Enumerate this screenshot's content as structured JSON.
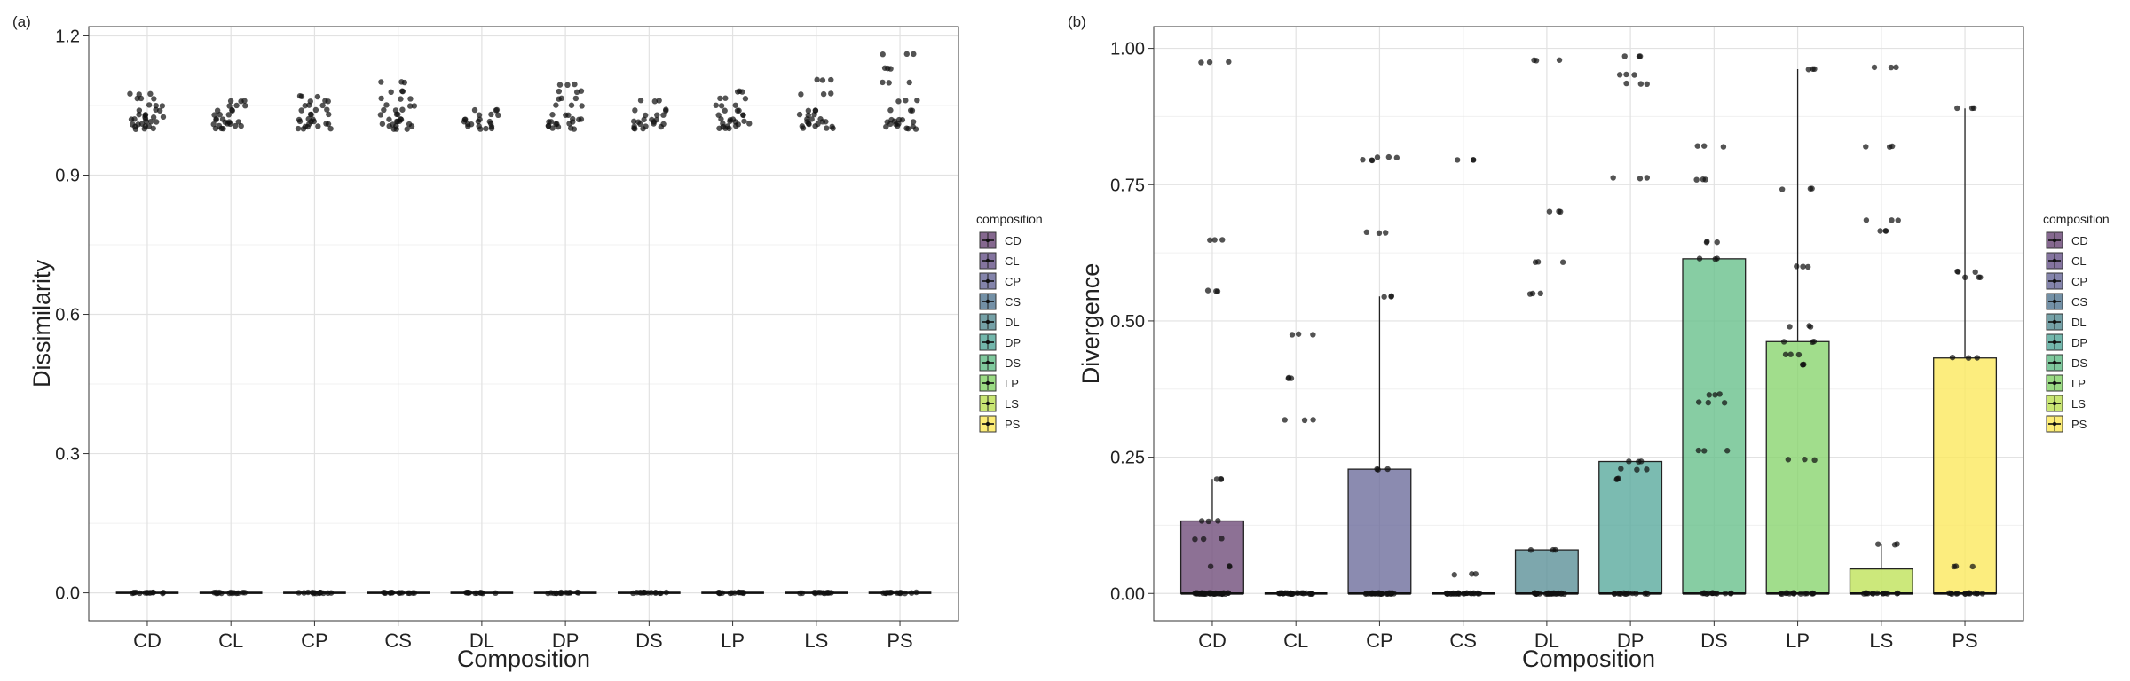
{
  "chart_data": [
    {
      "panel_label": "(a)",
      "type": "box",
      "xlabel": "Composition",
      "ylabel": "Dissimilarity",
      "categories": [
        "CD",
        "CL",
        "CP",
        "CS",
        "DL",
        "DP",
        "DS",
        "LP",
        "LS",
        "PS"
      ],
      "ylim": [
        -0.06,
        1.22
      ],
      "yticks": [
        0.0,
        0.3,
        0.6,
        0.9,
        1.2
      ],
      "ytick_labels": [
        "0.0",
        "0.3",
        "0.6",
        "0.9",
        "1.2"
      ],
      "grid": true,
      "legend": {
        "title": "composition",
        "position": "right"
      },
      "boxes": [
        {
          "q1": 0,
          "median": 0,
          "q3": 0,
          "whisker_high": 0
        },
        {
          "q1": 0,
          "median": 0,
          "q3": 0,
          "whisker_high": 0
        },
        {
          "q1": 0,
          "median": 0,
          "q3": 0,
          "whisker_high": 0
        },
        {
          "q1": 0,
          "median": 0,
          "q3": 0,
          "whisker_high": 0
        },
        {
          "q1": 0,
          "median": 0,
          "q3": 0,
          "whisker_high": 0
        },
        {
          "q1": 0,
          "median": 0,
          "q3": 0,
          "whisker_high": 0
        },
        {
          "q1": 0,
          "median": 0,
          "q3": 0,
          "whisker_high": 0
        },
        {
          "q1": 0,
          "median": 0,
          "q3": 0,
          "whisker_high": 0
        },
        {
          "q1": 0,
          "median": 0,
          "q3": 0,
          "whisker_high": 0
        },
        {
          "q1": 0,
          "median": 0,
          "q3": 0,
          "whisker_high": 0
        }
      ],
      "points": [
        [
          0,
          1.0,
          1.005,
          1.01,
          1.015,
          1.02,
          1.025,
          1.03,
          1.04,
          1.05,
          1.065,
          1.075
        ],
        [
          0,
          1.0,
          1.005,
          1.01,
          1.015,
          1.02,
          1.03,
          1.04,
          1.05,
          1.06
        ],
        [
          0,
          1.0,
          1.005,
          1.01,
          1.015,
          1.02,
          1.03,
          1.04,
          1.05,
          1.06,
          1.07
        ],
        [
          0,
          1.0,
          1.005,
          1.01,
          1.015,
          1.02,
          1.03,
          1.04,
          1.05,
          1.065,
          1.08,
          1.1
        ],
        [
          0,
          1.0,
          1.005,
          1.01,
          1.015,
          1.02,
          1.03,
          1.04
        ],
        [
          0,
          1.0,
          1.005,
          1.01,
          1.015,
          1.02,
          1.03,
          1.05,
          1.065,
          1.08,
          1.095
        ],
        [
          0,
          1.0,
          1.005,
          1.01,
          1.015,
          1.02,
          1.03,
          1.04,
          1.06
        ],
        [
          0,
          1.0,
          1.005,
          1.01,
          1.015,
          1.02,
          1.03,
          1.04,
          1.05,
          1.065,
          1.08
        ],
        [
          0,
          1.0,
          1.005,
          1.01,
          1.015,
          1.02,
          1.03,
          1.04,
          1.075,
          1.105
        ],
        [
          0,
          1.0,
          1.005,
          1.01,
          1.015,
          1.02,
          1.04,
          1.06,
          1.1,
          1.13,
          1.16
        ]
      ]
    },
    {
      "panel_label": "(b)",
      "type": "box",
      "xlabel": "Composition",
      "ylabel": "Divergence",
      "categories": [
        "CD",
        "CL",
        "CP",
        "CS",
        "DL",
        "DP",
        "DS",
        "LP",
        "LS",
        "PS"
      ],
      "ylim": [
        -0.05,
        1.04
      ],
      "yticks": [
        0.0,
        0.25,
        0.5,
        0.75,
        1.0
      ],
      "ytick_labels": [
        "0.00",
        "0.25",
        "0.50",
        "0.75",
        "1.00"
      ],
      "grid": true,
      "legend": {
        "title": "composition",
        "position": "right"
      },
      "boxes": [
        {
          "q1": 0,
          "median": 0,
          "q3": 0.133,
          "whisker_high": 0.21
        },
        {
          "q1": 0,
          "median": 0,
          "q3": 0,
          "whisker_high": 0
        },
        {
          "q1": 0,
          "median": 0,
          "q3": 0.228,
          "whisker_high": 0.545
        },
        {
          "q1": 0,
          "median": 0,
          "q3": 0,
          "whisker_high": 0
        },
        {
          "q1": 0,
          "median": 0,
          "q3": 0.08,
          "whisker_high": 0.08
        },
        {
          "q1": 0,
          "median": 0,
          "q3": 0.242,
          "whisker_high": 0.242
        },
        {
          "q1": 0,
          "median": 0,
          "q3": 0.614,
          "whisker_high": 0.614
        },
        {
          "q1": 0,
          "median": 0,
          "q3": 0.462,
          "whisker_high": 0.962
        },
        {
          "q1": 0,
          "median": 0,
          "q3": 0.045,
          "whisker_high": 0.09
        },
        {
          "q1": 0,
          "median": 0,
          "q3": 0.432,
          "whisker_high": 0.89
        }
      ],
      "points": [
        [
          0,
          0,
          0,
          0.05,
          0.1,
          0.133,
          0.21,
          0.555,
          0.648,
          0.975
        ],
        [
          0,
          0,
          0.318,
          0.395,
          0.475
        ],
        [
          0,
          0,
          0.228,
          0.545,
          0.662,
          0.795,
          0.8
        ],
        [
          0,
          0,
          0.035,
          0.795
        ],
        [
          0,
          0,
          0.08,
          0.55,
          0.608,
          0.7,
          0.978
        ],
        [
          0,
          0.21,
          0.228,
          0.242,
          0.762,
          0.935,
          0.952,
          0.985
        ],
        [
          0,
          0.262,
          0.35,
          0.365,
          0.614,
          0.645,
          0.76,
          0.82
        ],
        [
          0,
          0.245,
          0.42,
          0.438,
          0.462,
          0.49,
          0.6,
          0.742,
          0.962
        ],
        [
          0,
          0.09,
          0.665,
          0.685,
          0.82,
          0.965
        ],
        [
          0,
          0.05,
          0.432,
          0.58,
          0.59,
          0.89
        ]
      ]
    }
  ],
  "legend_colors": [
    "#704e7b",
    "#6e5c8e",
    "#6e6e9c",
    "#5a7d96",
    "#5d9198",
    "#5aaa9e",
    "#69c08c",
    "#89d56f",
    "#bfe25a",
    "#fbe95e"
  ]
}
